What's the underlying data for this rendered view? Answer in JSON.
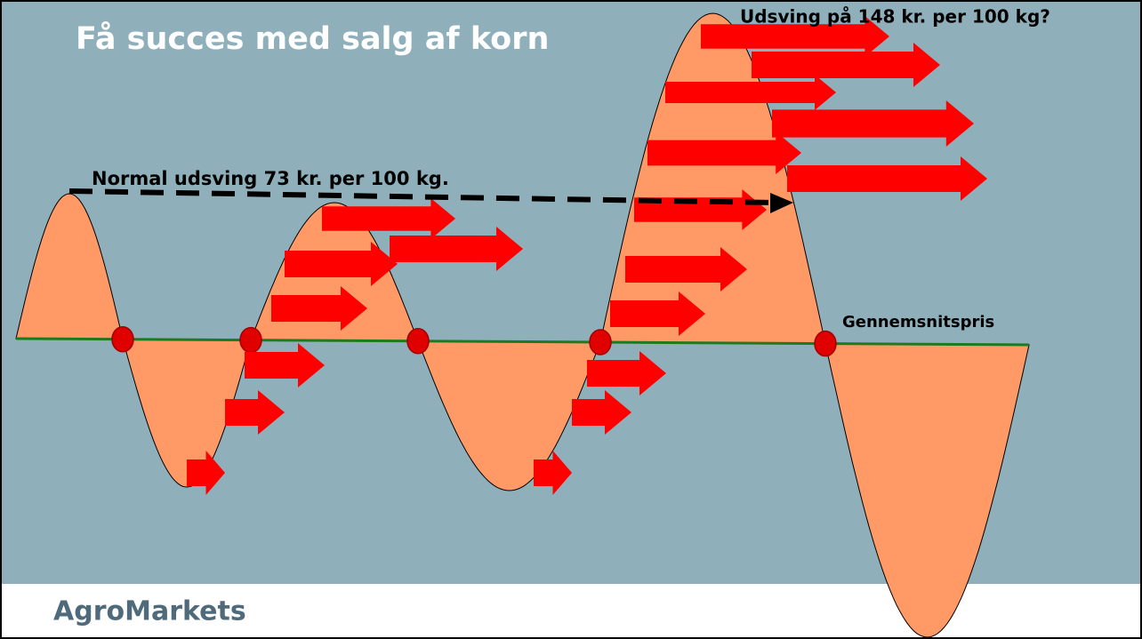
{
  "title": "Få succes med salg af korn",
  "annotations": {
    "large_swing": "Udsving på 148 kr. per 100 kg?",
    "normal_swing": "Normal udsving 73 kr. per 100 kg.",
    "average_price": "Gennemsnitspris"
  },
  "footer": {
    "logo": "AgroMarkets"
  }
}
